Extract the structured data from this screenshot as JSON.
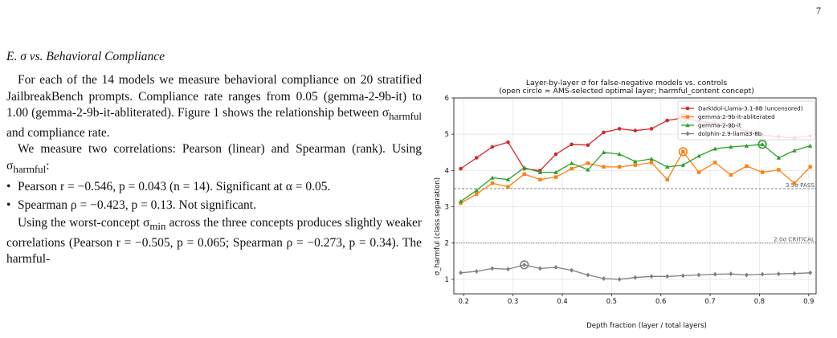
{
  "page_number": "7",
  "section": {
    "heading": "E. σ vs. Behavioral Compliance",
    "para1_a": "For each of the 14 models we measure behavioral compliance on 20 stratified JailbreakBench prompts. Compliance rate ranges from 0.05 (gemma-2-9b-it) to 1.00 (gemma-2-9b-it-abliterated). Figure 1 shows the relationship between σ",
    "para1_sub": "harmful",
    "para1_b": " and compliance rate.",
    "para2_a": "We measure two correlations: Pearson (linear) and Spearman (rank). Using σ",
    "para2_sub": "harmful",
    "para2_b": ":",
    "bullet1": "Pearson r = −0.546, p = 0.043 (n = 14). Significant at α = 0.05.",
    "bullet2": "Spearman ρ = −0.423, p = 0.13. Not significant.",
    "para3_a": "Using the worst-concept σ",
    "para3_sub": "min",
    "para3_b": " across the three concepts produces slightly weaker correlations (Pearson r = −0.505, p = 0.065; Spearman ρ = −0.273, p = 0.34). The harmful-"
  },
  "chart_data": {
    "type": "line",
    "title": "Layer-by-layer σ for false-negative models vs. controls",
    "subtitle": "(open circle = AMS-selected optimal layer; harmful_content concept)",
    "xlabel": "Depth fraction (layer / total layers)",
    "ylabel": "σ_harmful (class separation)",
    "xlim": [
      0.18,
      0.915
    ],
    "ylim": [
      0.6,
      6.0
    ],
    "xticks": [
      "0.2",
      "0.3",
      "0.4",
      "0.5",
      "0.6",
      "0.7",
      "0.8",
      "0.9"
    ],
    "yticks": [
      "1",
      "2",
      "3",
      "4",
      "5",
      "6"
    ],
    "grid": true,
    "legend_position": "top-right",
    "reference_lines": [
      {
        "y": 3.5,
        "label": "3.5σ PASS",
        "color": "#777777"
      },
      {
        "y": 2.0,
        "label": "2.0σ CRITICAL",
        "color": "#777777"
      }
    ],
    "series": [
      {
        "name": "DarkIdol-Llama-3.1-8B (uncensored)",
        "color": "#d62728",
        "marker": "circle",
        "x": [
          0.194,
          0.226,
          0.258,
          0.29,
          0.323,
          0.355,
          0.387,
          0.419,
          0.452,
          0.484,
          0.516,
          0.548,
          0.581,
          0.613,
          0.645,
          0.677,
          0.71,
          0.742,
          0.774,
          0.806,
          0.839,
          0.871,
          0.903
        ],
        "values": [
          4.05,
          4.35,
          4.65,
          4.78,
          4.05,
          4.0,
          4.45,
          4.72,
          4.7,
          5.05,
          5.15,
          5.1,
          5.15,
          5.38,
          5.45,
          5.35,
          5.3,
          5.2,
          5.08,
          4.98,
          4.93,
          4.9,
          4.95
        ],
        "optimal": {
          "x": 0.645,
          "y": 5.45
        }
      },
      {
        "name": "gemma-2-9b-it-abliterated",
        "color": "#ff7f0e",
        "marker": "square",
        "x": [
          0.194,
          0.226,
          0.258,
          0.29,
          0.323,
          0.355,
          0.387,
          0.419,
          0.452,
          0.484,
          0.516,
          0.548,
          0.581,
          0.613,
          0.645,
          0.677,
          0.71,
          0.742,
          0.774,
          0.806,
          0.839,
          0.871,
          0.903
        ],
        "values": [
          3.1,
          3.35,
          3.65,
          3.55,
          3.9,
          3.75,
          3.82,
          4.05,
          4.2,
          4.1,
          4.1,
          4.15,
          4.22,
          3.75,
          4.52,
          3.95,
          4.22,
          3.88,
          4.12,
          3.95,
          4.02,
          3.65,
          4.1
        ],
        "optimal": {
          "x": 0.645,
          "y": 4.52
        }
      },
      {
        "name": "gemma-2-9b-it",
        "color": "#2ca02c",
        "marker": "triangle",
        "x": [
          0.194,
          0.226,
          0.258,
          0.29,
          0.323,
          0.355,
          0.387,
          0.419,
          0.452,
          0.484,
          0.516,
          0.548,
          0.581,
          0.613,
          0.645,
          0.677,
          0.71,
          0.742,
          0.774,
          0.806,
          0.839,
          0.871,
          0.903
        ],
        "values": [
          3.15,
          3.45,
          3.8,
          3.75,
          4.08,
          3.95,
          3.95,
          4.2,
          4.02,
          4.5,
          4.45,
          4.25,
          4.32,
          4.1,
          4.15,
          4.4,
          4.6,
          4.65,
          4.68,
          4.72,
          4.35,
          4.55,
          4.68
        ],
        "optimal": {
          "x": 0.806,
          "y": 4.72
        }
      },
      {
        "name": "dolphin-2.9-llama3-8b",
        "color": "#7f7f7f",
        "marker": "diamond",
        "x": [
          0.194,
          0.226,
          0.258,
          0.29,
          0.323,
          0.355,
          0.387,
          0.419,
          0.452,
          0.484,
          0.516,
          0.548,
          0.581,
          0.613,
          0.645,
          0.677,
          0.71,
          0.742,
          0.774,
          0.806,
          0.839,
          0.871,
          0.903
        ],
        "values": [
          1.18,
          1.22,
          1.3,
          1.28,
          1.4,
          1.3,
          1.33,
          1.25,
          1.12,
          1.02,
          1.0,
          1.05,
          1.08,
          1.08,
          1.1,
          1.12,
          1.14,
          1.15,
          1.12,
          1.14,
          1.15,
          1.16,
          1.18
        ],
        "optimal": {
          "x": 0.323,
          "y": 1.4
        }
      }
    ]
  }
}
